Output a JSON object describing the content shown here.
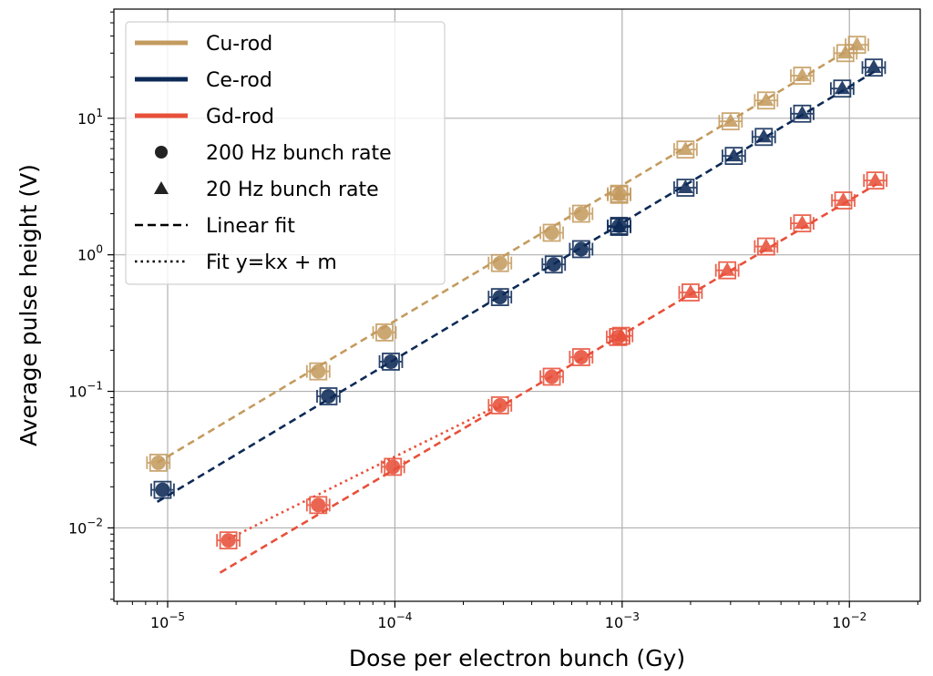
{
  "chart_data": {
    "type": "scatter",
    "xlabel": "Dose per electron bunch (Gy)",
    "ylabel": "Average pulse height (V)",
    "x_scale": "log",
    "y_scale": "log",
    "xlim": [
      5.8e-06,
      0.0205
    ],
    "ylim": [
      0.0029,
      63
    ],
    "grid": true,
    "legend_position": "top-left",
    "x_ticks": [
      {
        "value": 1e-05,
        "base": "10",
        "exp": "−5"
      },
      {
        "value": 0.0001,
        "base": "10",
        "exp": "−4"
      },
      {
        "value": 0.001,
        "base": "10",
        "exp": "−3"
      },
      {
        "value": 0.01,
        "base": "10",
        "exp": "−2"
      }
    ],
    "y_ticks": [
      {
        "value": 0.01,
        "base": "10",
        "exp": "−2"
      },
      {
        "value": 0.1,
        "base": "10",
        "exp": "−1"
      },
      {
        "value": 1,
        "base": "10",
        "exp": "0"
      },
      {
        "value": 10,
        "base": "10",
        "exp": "1"
      }
    ],
    "legend": [
      {
        "kind": "line",
        "label": "Cu-rod",
        "color": "#c49b5f"
      },
      {
        "kind": "line",
        "label": "Ce-rod",
        "color": "#0d2a57"
      },
      {
        "kind": "line",
        "label": "Gd-rod",
        "color": "#e8503a"
      },
      {
        "kind": "circle",
        "label": "200 Hz bunch rate",
        "color": "#222222"
      },
      {
        "kind": "triangle",
        "label": "20 Hz bunch rate",
        "color": "#222222"
      },
      {
        "kind": "dashed",
        "label": "Linear fit",
        "color": "#000000"
      },
      {
        "kind": "dotted",
        "label": "Fit y=kx + m",
        "color": "#000000"
      }
    ],
    "series": [
      {
        "name": "Cu-rod",
        "color": "#c49b5f",
        "points": [
          {
            "x": 9.1e-06,
            "y": 0.03,
            "marker": "circle"
          },
          {
            "x": 4.6e-05,
            "y": 0.14,
            "marker": "circle"
          },
          {
            "x": 9e-05,
            "y": 0.27,
            "marker": "circle"
          },
          {
            "x": 0.00029,
            "y": 0.87,
            "marker": "circle"
          },
          {
            "x": 0.00049,
            "y": 1.45,
            "marker": "circle"
          },
          {
            "x": 0.00066,
            "y": 2.0,
            "marker": "circle"
          },
          {
            "x": 0.00097,
            "y": 2.8,
            "marker": "circle"
          },
          {
            "x": 0.00097,
            "y": 2.75,
            "marker": "triangle"
          },
          {
            "x": 0.0019,
            "y": 5.9,
            "marker": "triangle"
          },
          {
            "x": 0.003,
            "y": 9.5,
            "marker": "triangle"
          },
          {
            "x": 0.0043,
            "y": 13.5,
            "marker": "triangle"
          },
          {
            "x": 0.0062,
            "y": 20.5,
            "marker": "triangle"
          },
          {
            "x": 0.0096,
            "y": 30.0,
            "marker": "triangle"
          },
          {
            "x": 0.0108,
            "y": 34.5,
            "marker": "triangle"
          }
        ],
        "fit": {
          "kind": "dashed",
          "x": [
            9e-06,
            0.011
          ],
          "y": [
            0.03,
            35.0
          ]
        }
      },
      {
        "name": "Ce-rod",
        "color": "#0d2a57",
        "points": [
          {
            "x": 9.5e-06,
            "y": 0.019,
            "marker": "circle"
          },
          {
            "x": 5.1e-05,
            "y": 0.092,
            "marker": "circle"
          },
          {
            "x": 9.6e-05,
            "y": 0.165,
            "marker": "circle"
          },
          {
            "x": 0.00029,
            "y": 0.49,
            "marker": "circle"
          },
          {
            "x": 0.0005,
            "y": 0.85,
            "marker": "circle"
          },
          {
            "x": 0.00066,
            "y": 1.1,
            "marker": "circle"
          },
          {
            "x": 0.00097,
            "y": 1.63,
            "marker": "circle"
          },
          {
            "x": 0.00097,
            "y": 1.6,
            "marker": "triangle"
          },
          {
            "x": 0.0019,
            "y": 3.1,
            "marker": "triangle"
          },
          {
            "x": 0.0031,
            "y": 5.3,
            "marker": "triangle"
          },
          {
            "x": 0.0042,
            "y": 7.3,
            "marker": "triangle"
          },
          {
            "x": 0.0062,
            "y": 10.8,
            "marker": "triangle"
          },
          {
            "x": 0.0093,
            "y": 16.5,
            "marker": "triangle"
          },
          {
            "x": 0.0128,
            "y": 23.5,
            "marker": "triangle"
          }
        ],
        "fit": {
          "kind": "dashed",
          "x": [
            9e-06,
            0.0135
          ],
          "y": [
            0.0155,
            23.0
          ]
        }
      },
      {
        "name": "Gd-rod",
        "color": "#e8503a",
        "points": [
          {
            "x": 1.85e-05,
            "y": 0.0081,
            "marker": "circle"
          },
          {
            "x": 4.6e-05,
            "y": 0.0147,
            "marker": "circle"
          },
          {
            "x": 9.8e-05,
            "y": 0.028,
            "marker": "circle"
          },
          {
            "x": 0.00029,
            "y": 0.079,
            "marker": "circle"
          },
          {
            "x": 0.00049,
            "y": 0.128,
            "marker": "circle"
          },
          {
            "x": 0.00066,
            "y": 0.178,
            "marker": "circle"
          },
          {
            "x": 0.00096,
            "y": 0.25,
            "marker": "circle"
          },
          {
            "x": 0.00099,
            "y": 0.255,
            "marker": "triangle"
          },
          {
            "x": 0.002,
            "y": 0.53,
            "marker": "triangle"
          },
          {
            "x": 0.0029,
            "y": 0.77,
            "marker": "triangle"
          },
          {
            "x": 0.0043,
            "y": 1.15,
            "marker": "triangle"
          },
          {
            "x": 0.0062,
            "y": 1.7,
            "marker": "triangle"
          },
          {
            "x": 0.0094,
            "y": 2.5,
            "marker": "triangle"
          },
          {
            "x": 0.013,
            "y": 3.5,
            "marker": "triangle"
          }
        ],
        "fit": {
          "kind": "dashed",
          "x": [
            1.7e-05,
            0.0132
          ],
          "y": [
            0.0047,
            3.3
          ]
        },
        "fit2": {
          "kind": "dotted",
          "x": [
            1.85e-05,
            0.0003
          ],
          "y": [
            0.0083,
            0.082
          ]
        }
      }
    ]
  }
}
